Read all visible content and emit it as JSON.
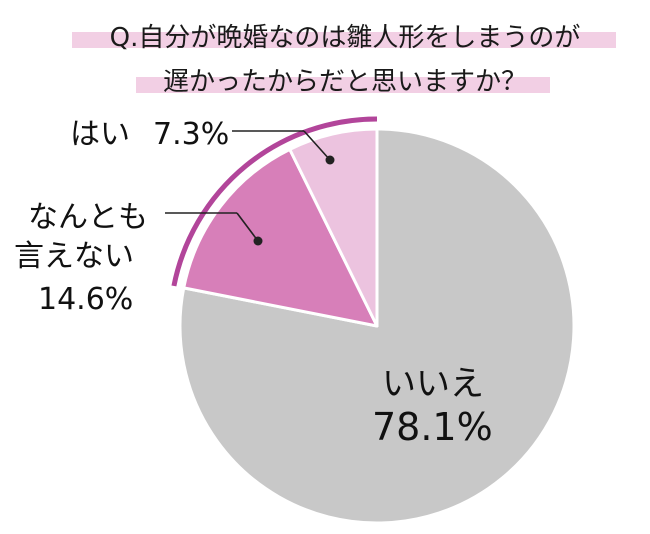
{
  "title": {
    "line1": "Q.自分が晩婚なのは雛人形をしまうのが",
    "line2": "遅かったからだと思いますか？"
  },
  "colors": {
    "title_highlight": "#f2cfe4",
    "accent_arc": "#b2459a",
    "leader": "#222222",
    "slice_border": "#ffffff"
  },
  "chart_data": {
    "type": "pie",
    "start_angle_deg": 0,
    "direction": "clockwise",
    "slices": [
      {
        "label": "いいえ",
        "value": 78.1,
        "value_text": "78.1%",
        "color": "#c8c8c8"
      },
      {
        "label_lines": [
          "なんとも",
          "言えない"
        ],
        "value": 14.6,
        "value_text": "14.6%",
        "color": "#d77fb9"
      },
      {
        "label": "はい",
        "value": 7.3,
        "value_text": "7.3%",
        "color": "#ecc3df"
      }
    ]
  }
}
